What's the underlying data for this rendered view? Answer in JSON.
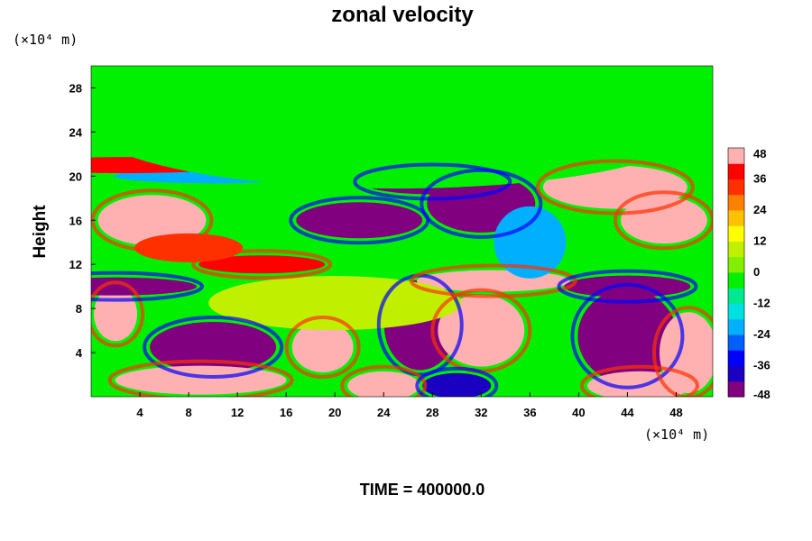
{
  "chart_data": {
    "type": "heatmap",
    "title": "zonal velocity",
    "ylabel": "Height",
    "y_unit": "(×10⁴ m)",
    "x_unit": "(×10⁴ m)",
    "x_ticks": [
      4,
      8,
      12,
      16,
      20,
      24,
      28,
      32,
      36,
      40,
      44,
      48
    ],
    "y_ticks": [
      4,
      8,
      12,
      16,
      20,
      24,
      28
    ],
    "xlim": [
      0,
      51
    ],
    "ylim": [
      0,
      30
    ],
    "colorbar": {
      "ticks": [
        48,
        36,
        24,
        12,
        0,
        -12,
        -24,
        -36,
        -48
      ],
      "range": [
        -48,
        48
      ],
      "colors": [
        "#800080",
        "#1a00c0",
        "#0000ff",
        "#0060ff",
        "#00b0ff",
        "#00e0e0",
        "#00e890",
        "#00f000",
        "#80f000",
        "#c0f000",
        "#ffff00",
        "#ffc000",
        "#ff8000",
        "#ff3000",
        "#ff0000",
        "#ffb0b0"
      ]
    },
    "features": [
      {
        "x": 10,
        "y": 4.5,
        "value": -48
      },
      {
        "x": 9,
        "y": 1.5,
        "value": 48
      },
      {
        "x": 19,
        "y": 4.5,
        "value": 46
      },
      {
        "x": 27,
        "y": 6.5,
        "value": -48
      },
      {
        "x": 32,
        "y": 6,
        "value": 46
      },
      {
        "x": 44,
        "y": 5.5,
        "value": -48
      },
      {
        "x": 49,
        "y": 4,
        "value": 42
      },
      {
        "x": 24,
        "y": 1,
        "value": 44
      },
      {
        "x": 30,
        "y": 1,
        "value": -40
      },
      {
        "x": 45,
        "y": 1,
        "value": 46
      },
      {
        "x": 2,
        "y": 7.5,
        "value": 44
      },
      {
        "x": 33,
        "y": 10.5,
        "value": 48
      },
      {
        "x": 2,
        "y": 10,
        "value": -48
      },
      {
        "x": 44,
        "y": 10,
        "value": -44
      },
      {
        "x": 14,
        "y": 12,
        "value": 40
      },
      {
        "x": 5,
        "y": 16,
        "value": 48
      },
      {
        "x": 22,
        "y": 16,
        "value": -48
      },
      {
        "x": 32,
        "y": 17.5,
        "value": -48
      },
      {
        "x": 28,
        "y": 19.5,
        "value": -46
      },
      {
        "x": 43,
        "y": 19,
        "value": 48
      },
      {
        "x": 47,
        "y": 16,
        "value": 44
      },
      {
        "x": 8,
        "y": 13.5,
        "value": 30
      },
      {
        "x": 10,
        "y": 20,
        "value": -20
      },
      {
        "x": 3,
        "y": 21,
        "value": 36
      },
      {
        "x": 36,
        "y": 14,
        "value": -20
      },
      {
        "x": 20,
        "y": 8.5,
        "value": 8
      },
      {
        "x": 25,
        "y": 25,
        "value": -2
      }
    ]
  },
  "footer": {
    "time_label": "TIME = 400000.0"
  }
}
